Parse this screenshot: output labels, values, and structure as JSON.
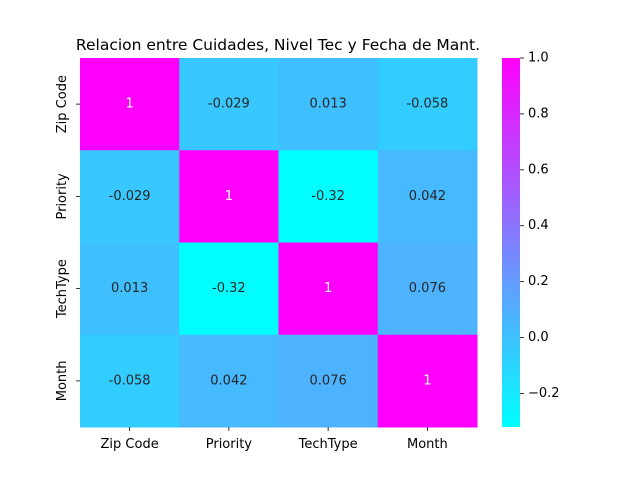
{
  "chart_data": {
    "type": "heatmap",
    "title": "Relacion entre Cuidades, Nivel Tec y Fecha de Mant.",
    "rows": [
      "Zip Code",
      "Priority",
      "TechType",
      "Month"
    ],
    "columns": [
      "Zip Code",
      "Priority",
      "TechType",
      "Month"
    ],
    "values": [
      [
        1,
        -0.029,
        0.013,
        -0.058
      ],
      [
        -0.029,
        1,
        -0.32,
        0.042
      ],
      [
        0.013,
        -0.32,
        1,
        0.076
      ],
      [
        -0.058,
        0.042,
        0.076,
        1
      ]
    ],
    "annotations": [
      [
        "1",
        "-0.029",
        "0.013",
        "-0.058"
      ],
      [
        "-0.029",
        "1",
        "-0.32",
        "0.042"
      ],
      [
        "0.013",
        "-0.32",
        "1",
        "0.076"
      ],
      [
        "-0.058",
        "0.042",
        "0.076",
        "1"
      ]
    ],
    "colormap": "cool",
    "colormap_start": "#00ffff",
    "colormap_end": "#ff00ff",
    "vmin": -0.32,
    "vmax": 1.0,
    "colorbar_ticks": [
      -0.2,
      0.0,
      0.2,
      0.4,
      0.6,
      0.8,
      1.0
    ],
    "colorbar_tick_labels": [
      "−0.2",
      "0.0",
      "0.2",
      "0.4",
      "0.6",
      "0.8",
      "1.0"
    ]
  }
}
